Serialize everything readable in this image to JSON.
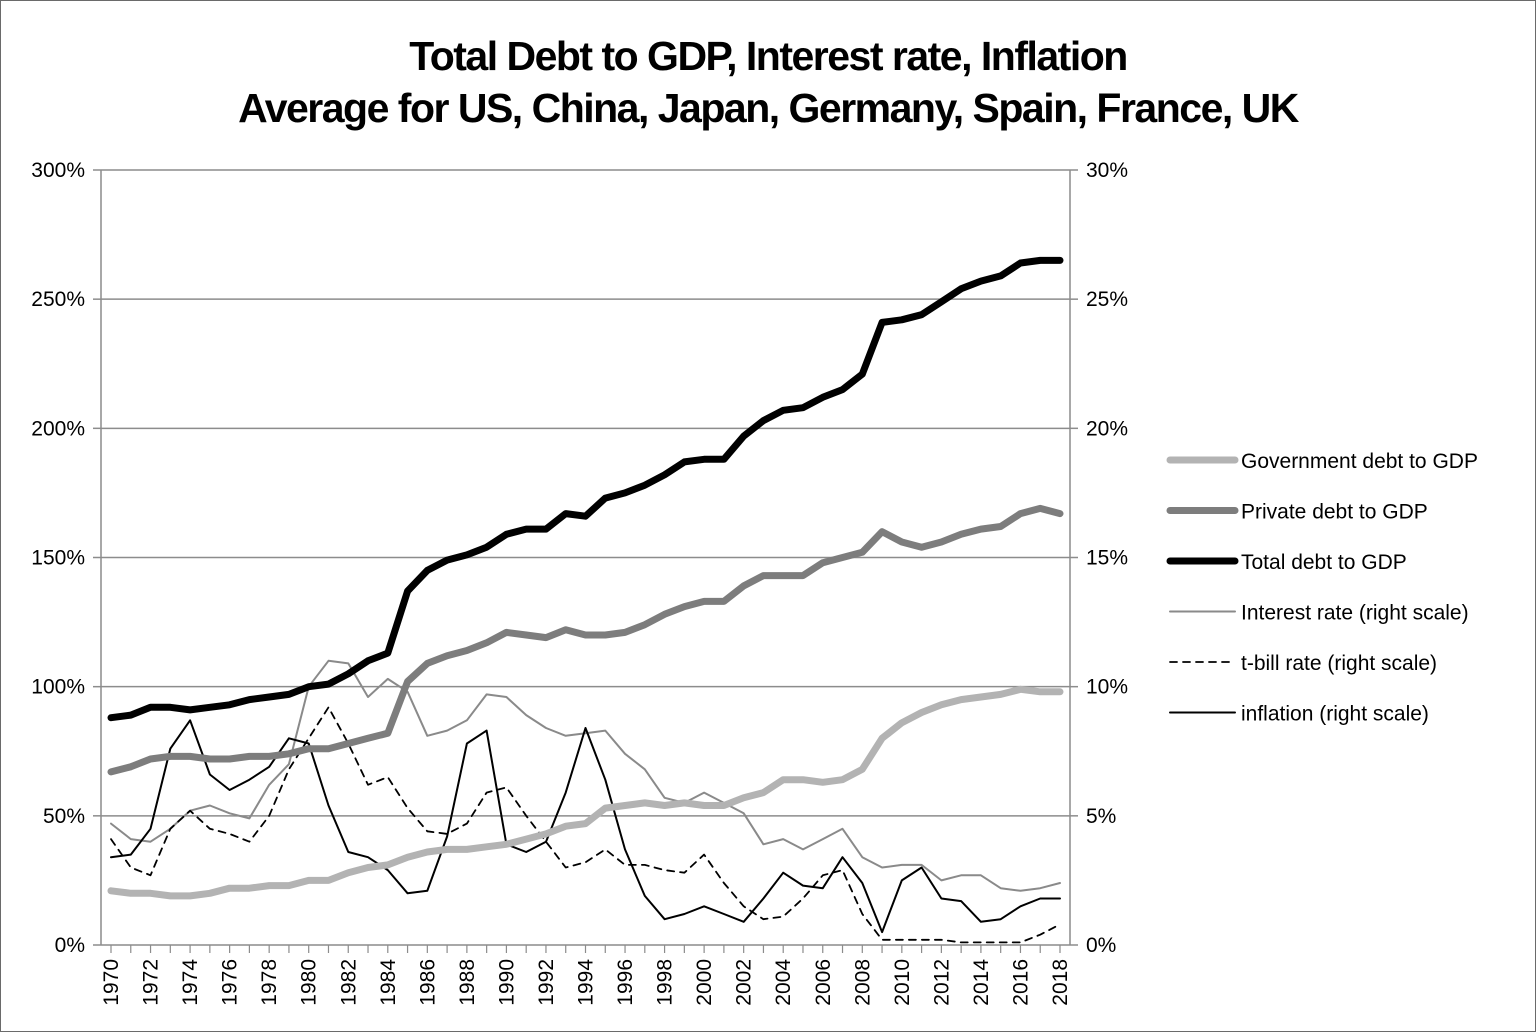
{
  "chart_data": {
    "type": "line",
    "title": "Total Debt to GDP, Interest rate, Inflation",
    "subtitle": "Average for US, China, Japan, Germany, Spain, France, UK",
    "xlabel": "",
    "ylabel": "",
    "x": [
      1970,
      1971,
      1972,
      1973,
      1974,
      1975,
      1976,
      1977,
      1978,
      1979,
      1980,
      1981,
      1982,
      1983,
      1984,
      1985,
      1986,
      1987,
      1988,
      1989,
      1990,
      1991,
      1992,
      1993,
      1994,
      1995,
      1996,
      1997,
      1998,
      1999,
      2000,
      2001,
      2002,
      2003,
      2004,
      2005,
      2006,
      2007,
      2008,
      2009,
      2010,
      2011,
      2012,
      2013,
      2014,
      2015,
      2016,
      2017,
      2018
    ],
    "x_tick_labels": [
      "1970",
      "1972",
      "1974",
      "1976",
      "1978",
      "1980",
      "1982",
      "1984",
      "1986",
      "1988",
      "1990",
      "1992",
      "1994",
      "1996",
      "1998",
      "2000",
      "2002",
      "2004",
      "2006",
      "2008",
      "2010",
      "2012",
      "2014",
      "2016",
      "2018"
    ],
    "ylim_left": [
      0,
      300
    ],
    "ylim_right": [
      0,
      30
    ],
    "y_left_tick_labels": [
      "0%",
      "50%",
      "100%",
      "150%",
      "200%",
      "250%",
      "300%"
    ],
    "y_right_tick_labels": [
      "0%",
      "5%",
      "10%",
      "15%",
      "20%",
      "25%",
      "30%"
    ],
    "grid": true,
    "legend_position": "right",
    "series": [
      {
        "name": "Government debt to GDP",
        "axis": "left",
        "color": "#b3b3b3",
        "style": "thick-solid",
        "values": [
          21,
          20,
          20,
          19,
          19,
          20,
          22,
          22,
          23,
          23,
          25,
          25,
          28,
          30,
          31,
          34,
          36,
          37,
          37,
          38,
          39,
          41,
          43,
          46,
          47,
          53,
          54,
          55,
          54,
          55,
          54,
          54,
          57,
          59,
          64,
          64,
          63,
          64,
          68,
          80,
          86,
          90,
          93,
          95,
          96,
          97,
          99,
          98,
          98
        ]
      },
      {
        "name": "Private debt to GDP",
        "axis": "left",
        "color": "#7d7d7d",
        "style": "thick-solid",
        "values": [
          67,
          69,
          72,
          73,
          73,
          72,
          72,
          73,
          73,
          74,
          76,
          76,
          78,
          80,
          82,
          102,
          109,
          112,
          114,
          117,
          121,
          120,
          119,
          122,
          120,
          120,
          121,
          124,
          128,
          131,
          133,
          133,
          139,
          143,
          143,
          143,
          148,
          150,
          152,
          160,
          156,
          154,
          156,
          159,
          161,
          162,
          167,
          169,
          167
        ]
      },
      {
        "name": "Total debt to GDP",
        "axis": "left",
        "color": "#000000",
        "style": "thick-solid",
        "values": [
          88,
          89,
          92,
          92,
          91,
          92,
          93,
          95,
          96,
          97,
          100,
          101,
          105,
          110,
          113,
          137,
          145,
          149,
          151,
          154,
          159,
          161,
          161,
          167,
          166,
          173,
          175,
          178,
          182,
          187,
          188,
          188,
          197,
          203,
          207,
          208,
          212,
          215,
          221,
          241,
          242,
          244,
          249,
          254,
          257,
          259,
          264,
          265,
          265
        ]
      },
      {
        "name": "Interest rate (right scale)",
        "axis": "right",
        "color": "#8a8a8a",
        "style": "thin-solid",
        "values": [
          4.7,
          4.1,
          4.0,
          4.5,
          5.2,
          5.4,
          5.1,
          4.9,
          6.2,
          7.0,
          10.0,
          11.0,
          10.9,
          9.6,
          10.3,
          9.8,
          8.1,
          8.3,
          8.7,
          9.7,
          9.6,
          8.9,
          8.4,
          8.1,
          8.2,
          8.3,
          7.4,
          6.8,
          5.7,
          5.5,
          5.9,
          5.5,
          5.1,
          3.9,
          4.1,
          3.7,
          4.1,
          4.5,
          3.4,
          3.0,
          3.1,
          3.1,
          2.5,
          2.7,
          2.7,
          2.2,
          2.1,
          2.2,
          2.4
        ]
      },
      {
        "name": "t-bill rate (right scale)",
        "axis": "right",
        "color": "#000000",
        "style": "dashed",
        "values": [
          4.1,
          3.0,
          2.7,
          4.5,
          5.2,
          4.5,
          4.3,
          4.0,
          5.0,
          6.8,
          8.0,
          9.2,
          7.8,
          6.2,
          6.5,
          5.3,
          4.4,
          4.3,
          4.7,
          5.9,
          6.1,
          5.0,
          4.0,
          3.0,
          3.2,
          3.7,
          3.1,
          3.1,
          2.9,
          2.8,
          3.5,
          2.4,
          1.5,
          1.0,
          1.1,
          1.8,
          2.7,
          2.9,
          1.2,
          0.2,
          0.2,
          0.2,
          0.2,
          0.1,
          0.1,
          0.1,
          0.1,
          0.4,
          0.8
        ]
      },
      {
        "name": "inflation (right scale)",
        "axis": "right",
        "color": "#000000",
        "style": "thin-solid",
        "values": [
          3.4,
          3.5,
          4.5,
          7.6,
          8.7,
          6.6,
          6.0,
          6.4,
          6.9,
          8.0,
          7.8,
          5.4,
          3.6,
          3.4,
          2.9,
          2.0,
          2.1,
          4.2,
          7.8,
          8.3,
          3.9,
          3.6,
          4.0,
          5.9,
          8.4,
          6.4,
          3.7,
          1.9,
          1.0,
          1.2,
          1.5,
          1.2,
          0.9,
          1.8,
          2.8,
          2.3,
          2.2,
          3.4,
          2.4,
          0.5,
          2.5,
          3.0,
          1.8,
          1.7,
          0.9,
          1.0,
          1.5,
          1.8,
          1.8
        ]
      }
    ]
  }
}
